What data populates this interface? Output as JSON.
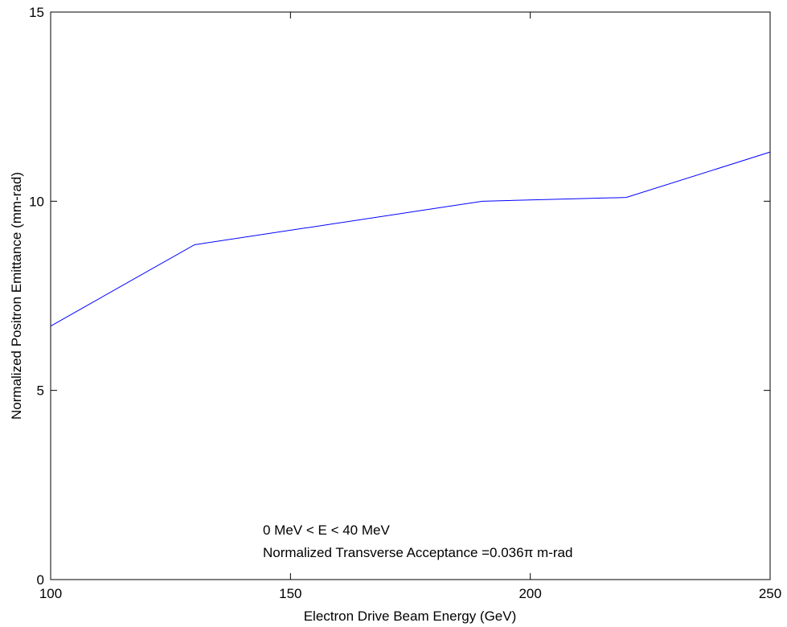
{
  "chart_data": {
    "type": "line",
    "title": "",
    "xlabel": "Electron Drive Beam Energy (GeV)",
    "ylabel": "Normalized Positron Emittance (mm-rad)",
    "xlim": [
      100,
      250
    ],
    "ylim": [
      0,
      15
    ],
    "xticks": [
      100,
      150,
      200,
      250
    ],
    "yticks": [
      0,
      5,
      10,
      15
    ],
    "grid": false,
    "series": [
      {
        "color": "#0000ff",
        "x": [
          100,
          130,
          190,
          220,
          250
        ],
        "y": [
          6.7,
          8.85,
          10.0,
          10.1,
          11.3
        ]
      }
    ],
    "annotations": [
      "0 MeV < E < 40 MeV",
      "Normalized Transverse Acceptance =0.036π m-rad"
    ]
  }
}
